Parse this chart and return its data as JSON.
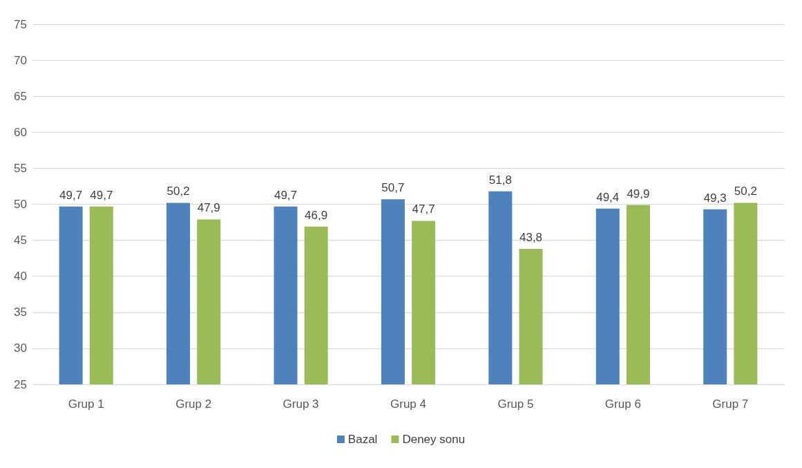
{
  "chart_data": {
    "type": "bar",
    "categories": [
      "Grup 1",
      "Grup 2",
      "Grup 3",
      "Grup 4",
      "Grup 5",
      "Grup 6",
      "Grup 7"
    ],
    "series": [
      {
        "name": "Bazal",
        "color": "#4f81bd",
        "values": [
          49.7,
          50.2,
          49.7,
          50.7,
          51.8,
          49.4,
          49.3
        ],
        "value_labels": [
          "49,7",
          "50,2",
          "49,7",
          "50,7",
          "51,8",
          "49,4",
          "49,3"
        ]
      },
      {
        "name": "Deney sonu",
        "color": "#9bbb59",
        "values": [
          49.7,
          47.9,
          46.9,
          47.7,
          43.8,
          49.9,
          50.2
        ],
        "value_labels": [
          "49,7",
          "47,9",
          "46,9",
          "47,7",
          "43,8",
          "49,9",
          "50,2"
        ]
      }
    ],
    "ylim": [
      25,
      75
    ],
    "yticks": [
      25,
      30,
      35,
      40,
      45,
      50,
      55,
      60,
      65,
      70,
      75
    ],
    "grid": "y",
    "legend": "bottom"
  }
}
